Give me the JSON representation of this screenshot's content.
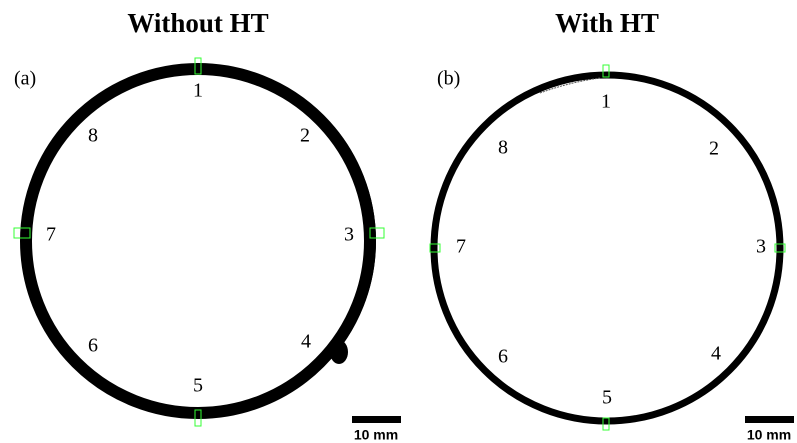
{
  "panels": [
    {
      "title": "Without HT",
      "label": "(a)",
      "positions": [
        "1",
        "2",
        "3",
        "4",
        "5",
        "6",
        "7",
        "8"
      ],
      "scale_bar": "10 mm"
    },
    {
      "title": "With HT",
      "label": "(b)",
      "positions": [
        "1",
        "2",
        "3",
        "4",
        "5",
        "6",
        "7",
        "8"
      ],
      "scale_bar": "10 mm"
    }
  ]
}
